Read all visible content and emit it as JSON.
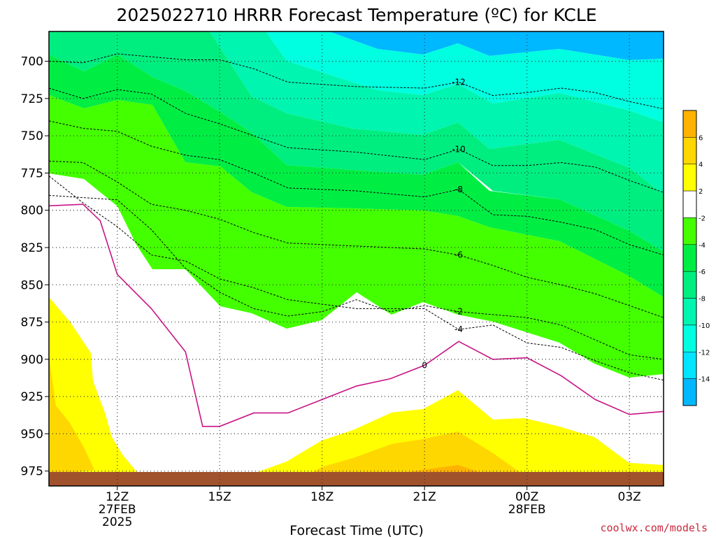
{
  "chart_data": {
    "type": "filled-contour",
    "title": "2025022710 HRRR Forecast Temperature (ºC) for KCLE",
    "xlabel": "Forecast Time (UTC)",
    "credit": "coolwx.com/models",
    "x_ticks": [
      {
        "line1": "12Z",
        "line2": "27FEB",
        "line3": "2025"
      },
      {
        "line1": "15Z",
        "line2": "",
        "line3": ""
      },
      {
        "line1": "18Z",
        "line2": "",
        "line3": ""
      },
      {
        "line1": "21Z",
        "line2": "",
        "line3": ""
      },
      {
        "line1": "00Z",
        "line2": "28FEB",
        "line3": ""
      },
      {
        "line1": "03Z",
        "line2": "",
        "line3": ""
      }
    ],
    "y_ticks": [
      "700",
      "725",
      "750",
      "775",
      "800",
      "825",
      "850",
      "875",
      "900",
      "925",
      "950",
      "975"
    ],
    "y_values": [
      700,
      725,
      750,
      775,
      800,
      825,
      850,
      875,
      900,
      925,
      950,
      975
    ],
    "x_range_hours": [
      10,
      28
    ],
    "y_range_hpa": [
      680,
      985
    ],
    "grid": true,
    "colorbar": {
      "position": "right",
      "labels": [
        "6",
        "4",
        "2",
        "-2",
        "-4",
        "-6",
        "-8",
        "-10",
        "-12",
        "-14"
      ],
      "colors": [
        "#ffb300",
        "#ffd700",
        "#ffff00",
        "#ffffff",
        "#44ff00",
        "#00ee44",
        "#00ee80",
        "#00f5b0",
        "#00ffe0",
        "#00e5ff",
        "#00b8ff"
      ]
    },
    "isotherms": [
      {
        "level": -12,
        "label": "-12",
        "points": [
          [
            10,
            700
          ],
          [
            11,
            701
          ],
          [
            12,
            695
          ],
          [
            14,
            699
          ],
          [
            15,
            699
          ],
          [
            16,
            705
          ],
          [
            17,
            714
          ],
          [
            19,
            717
          ],
          [
            21,
            718
          ],
          [
            22,
            714
          ],
          [
            23,
            723
          ],
          [
            24,
            721
          ],
          [
            25,
            718
          ],
          [
            26,
            721
          ],
          [
            27,
            727
          ],
          [
            28,
            732
          ]
        ]
      },
      {
        "level": -10,
        "label": "-10",
        "points": [
          [
            10,
            718
          ],
          [
            11,
            725
          ],
          [
            12,
            719
          ],
          [
            13,
            722
          ],
          [
            14,
            735
          ],
          [
            15,
            742
          ],
          [
            16,
            750
          ],
          [
            17,
            758
          ],
          [
            19,
            761
          ],
          [
            21,
            766
          ],
          [
            22,
            759
          ],
          [
            23,
            770
          ],
          [
            24,
            770
          ],
          [
            25,
            768
          ],
          [
            26,
            771
          ],
          [
            27,
            780
          ],
          [
            28,
            788
          ]
        ]
      },
      {
        "level": -8,
        "label": "-8",
        "points": [
          [
            10,
            740
          ],
          [
            11,
            745
          ],
          [
            12,
            747
          ],
          [
            13,
            757
          ],
          [
            14,
            763
          ],
          [
            15,
            766
          ],
          [
            16,
            775
          ],
          [
            17,
            785
          ],
          [
            19,
            787
          ],
          [
            21,
            791
          ],
          [
            22,
            786
          ],
          [
            23,
            803
          ],
          [
            24,
            804
          ],
          [
            25,
            808
          ],
          [
            26,
            813
          ],
          [
            27,
            823
          ],
          [
            28,
            830
          ]
        ]
      },
      {
        "level": -6,
        "label": "-6",
        "points": [
          [
            10,
            767
          ],
          [
            11,
            768
          ],
          [
            12,
            781
          ],
          [
            13,
            796
          ],
          [
            14,
            800
          ],
          [
            15,
            806
          ],
          [
            16,
            815
          ],
          [
            17,
            822
          ],
          [
            19,
            824
          ],
          [
            21,
            826
          ],
          [
            22,
            830
          ],
          [
            23,
            837
          ],
          [
            24,
            845
          ],
          [
            25,
            850
          ],
          [
            26,
            856
          ],
          [
            27,
            864
          ],
          [
            28,
            872
          ]
        ]
      },
      {
        "level": -4,
        "label": "-4",
        "points": [
          [
            10,
            777
          ],
          [
            11,
            795
          ],
          [
            12,
            811
          ],
          [
            13,
            830
          ],
          [
            14,
            834
          ],
          [
            15,
            846
          ],
          [
            16,
            852
          ],
          [
            17,
            860
          ],
          [
            19,
            866
          ],
          [
            21,
            866
          ],
          [
            22,
            880
          ],
          [
            23,
            877
          ],
          [
            24,
            889
          ],
          [
            25,
            892
          ],
          [
            26,
            901
          ],
          [
            27,
            909
          ],
          [
            28,
            914
          ]
        ]
      },
      {
        "level": -2,
        "label": "-2",
        "points": [
          [
            10,
            790
          ],
          [
            12,
            793
          ],
          [
            13,
            813
          ],
          [
            14,
            839
          ],
          [
            15,
            855
          ],
          [
            16,
            866
          ],
          [
            17,
            871
          ],
          [
            18,
            868
          ],
          [
            19,
            860
          ],
          [
            20,
            868
          ],
          [
            21,
            864
          ],
          [
            22,
            868
          ],
          [
            23,
            870
          ],
          [
            24,
            872
          ],
          [
            25,
            877
          ],
          [
            26,
            887
          ],
          [
            27,
            897
          ],
          [
            28,
            900
          ]
        ]
      },
      {
        "level": 0,
        "label": "0",
        "points": [
          [
            10,
            797
          ],
          [
            11,
            796
          ],
          [
            11.5,
            807
          ],
          [
            12,
            843
          ],
          [
            13,
            866
          ],
          [
            14,
            895
          ],
          [
            14.5,
            945
          ],
          [
            15,
            945
          ],
          [
            16,
            936
          ],
          [
            17,
            936
          ],
          [
            18,
            927
          ],
          [
            19,
            918
          ],
          [
            20,
            913
          ],
          [
            21,
            904
          ],
          [
            22,
            888
          ],
          [
            23,
            900
          ],
          [
            24,
            899
          ],
          [
            25,
            911
          ],
          [
            26,
            927
          ],
          [
            27,
            937
          ],
          [
            28,
            935
          ]
        ]
      }
    ]
  }
}
